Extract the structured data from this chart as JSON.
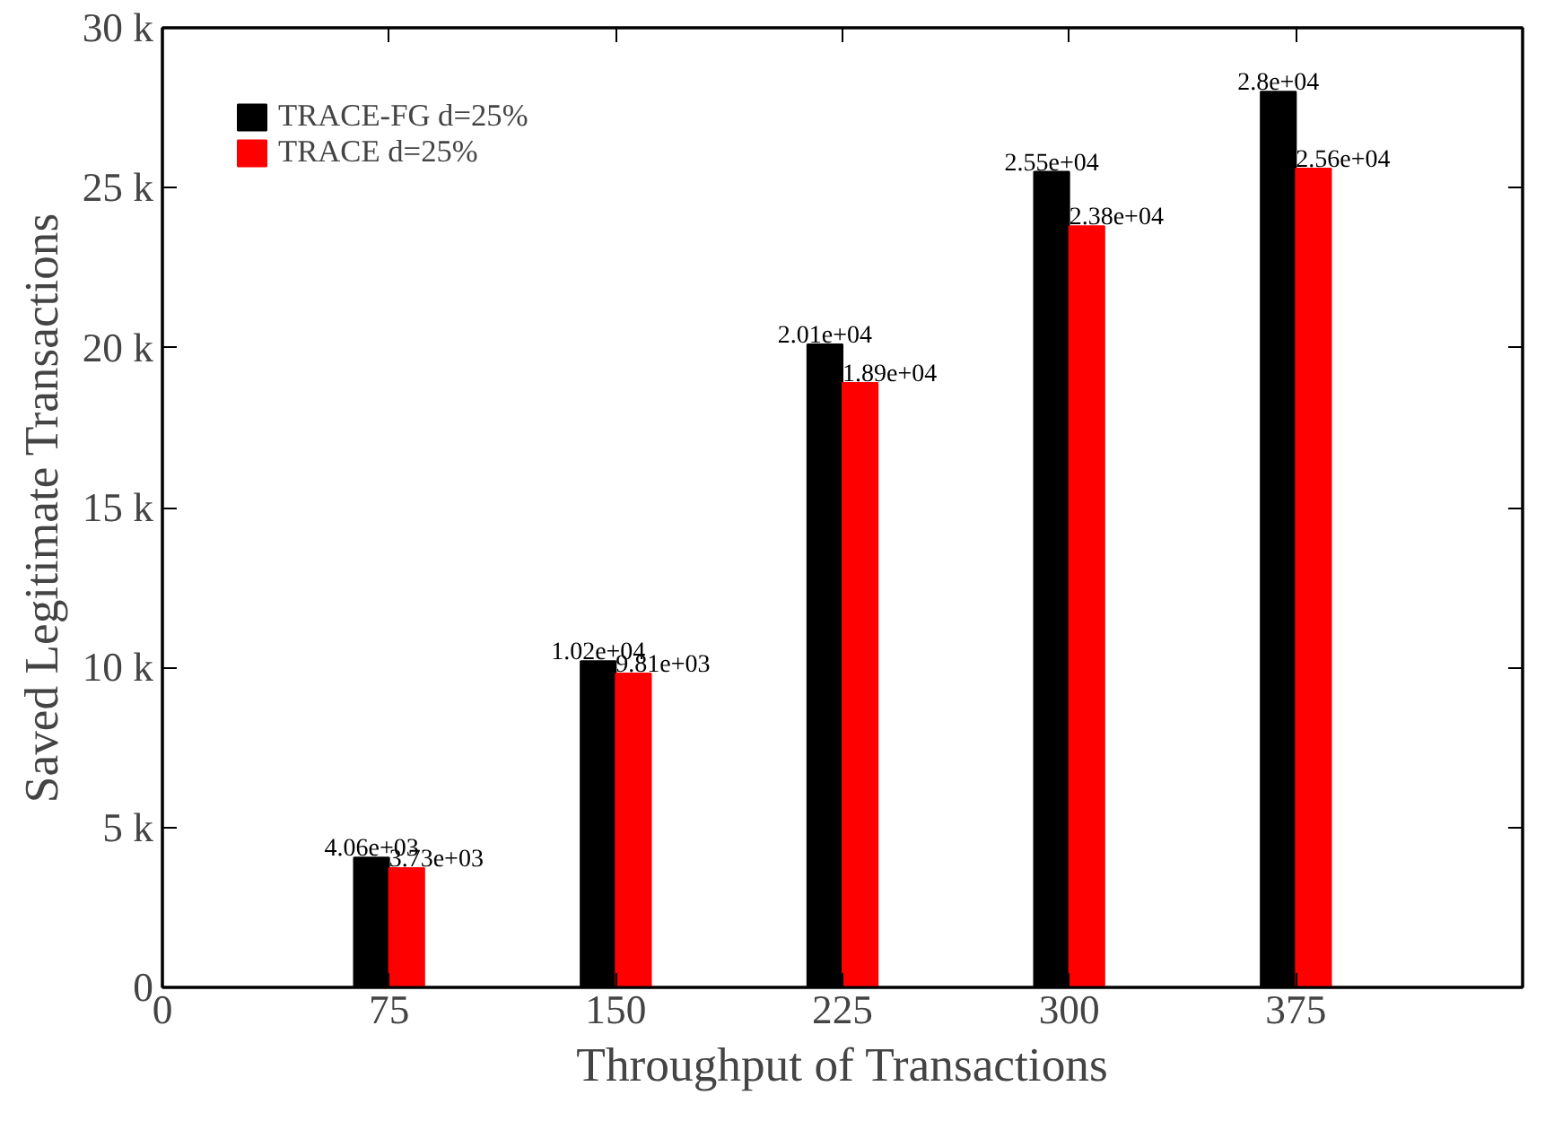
{
  "chart_data": {
    "type": "bar",
    "xlabel": "Throughput of Transactions",
    "ylabel": "Saved Legitimate Transactions",
    "x": [
      75,
      150,
      225,
      300,
      375
    ],
    "xlim": [
      0,
      450
    ],
    "xticks": [
      0,
      75,
      150,
      225,
      300,
      375
    ],
    "ylim": [
      0,
      30000
    ],
    "yticks": [
      {
        "value": 0,
        "label": "0"
      },
      {
        "value": 5000,
        "label": "5 k"
      },
      {
        "value": 10000,
        "label": "10 k"
      },
      {
        "value": 15000,
        "label": "15 k"
      },
      {
        "value": 20000,
        "label": "20 k"
      },
      {
        "value": 25000,
        "label": "25 k"
      },
      {
        "value": 30000,
        "label": "30 k"
      }
    ],
    "series": [
      {
        "name": "TRACE-FG d=25%",
        "color": "#000000",
        "values": [
          4060,
          10200,
          20100,
          25500,
          28000
        ],
        "value_labels": [
          "4.06e+03",
          "1.02e+04",
          "2.01e+04",
          "2.55e+04",
          "2.8e+04"
        ]
      },
      {
        "name": "TRACE d=25%",
        "color": "#ff0000",
        "values": [
          3730,
          9810,
          18900,
          23800,
          25600
        ],
        "value_labels": [
          "3.73e+03",
          "9.81e+03",
          "1.89e+04",
          "2.38e+04",
          "2.56e+04"
        ]
      }
    ],
    "legend": "top left",
    "grid": false
  }
}
